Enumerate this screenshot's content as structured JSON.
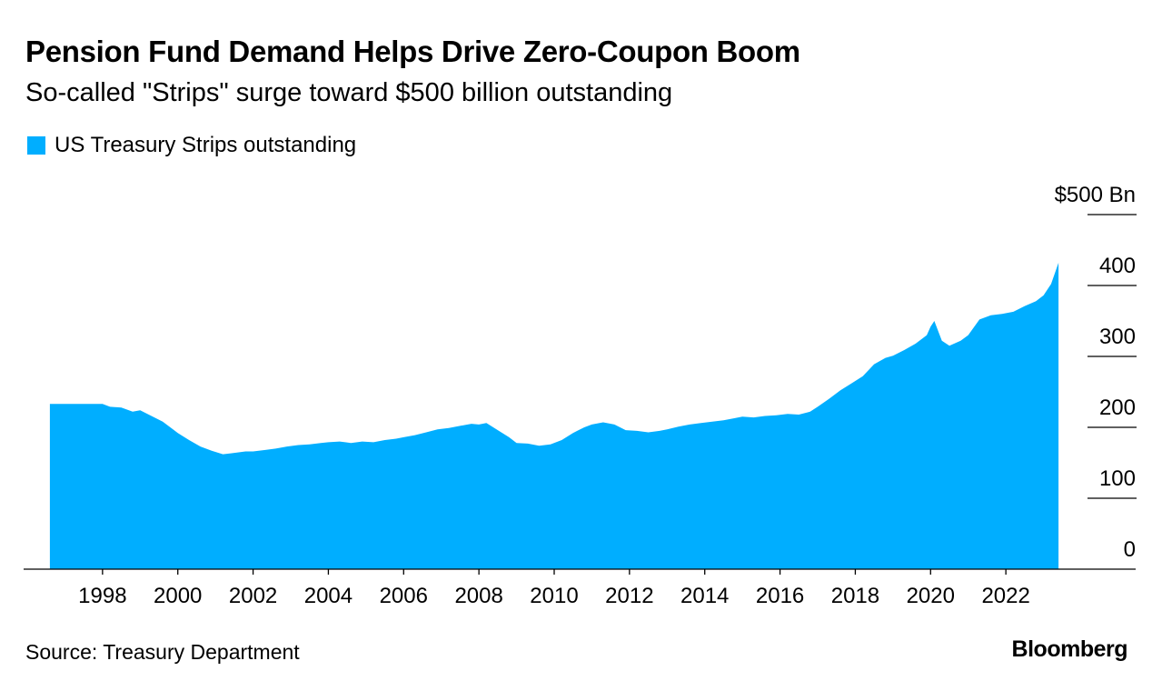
{
  "header": {
    "title": "Pension Fund Demand Helps Drive Zero-Coupon Boom",
    "subtitle": "So-called \"Strips\" surge toward $500 billion outstanding"
  },
  "legend": {
    "label": "US Treasury Strips outstanding",
    "color": "#00aeff"
  },
  "footer": {
    "source": "Source: Treasury Department",
    "brand": "Bloomberg"
  },
  "chart_data": {
    "type": "area",
    "title": "Pension Fund Demand Helps Drive Zero-Coupon Boom",
    "subtitle": "So-called \"Strips\" surge toward $500 billion outstanding",
    "xlabel": "",
    "ylabel": "",
    "ylim": [
      0,
      500
    ],
    "xlim": [
      1996.0,
      2024.0
    ],
    "y_ticks": [
      0,
      100,
      200,
      300,
      400,
      500
    ],
    "y_tick_labels": [
      "0",
      "100",
      "200",
      "300",
      "400",
      "$500 Bn"
    ],
    "x_ticks": [
      1998,
      2000,
      2002,
      2004,
      2006,
      2008,
      2010,
      2012,
      2014,
      2016,
      2018,
      2020,
      2022
    ],
    "x_tick_labels": [
      "1998",
      "2000",
      "2002",
      "2004",
      "2006",
      "2008",
      "2010",
      "2012",
      "2014",
      "2016",
      "2018",
      "2020",
      "2022"
    ],
    "y_axis_position": "right",
    "grid": false,
    "legend_position": "top-left",
    "series": [
      {
        "name": "US Treasury Strips outstanding",
        "color": "#00aeff",
        "x": [
          1996.6,
          1997.0,
          1997.5,
          1998.0,
          1998.2,
          1998.5,
          1998.8,
          1999.0,
          1999.3,
          1999.6,
          1999.9,
          2000.0,
          2000.3,
          2000.6,
          2000.9,
          2001.2,
          2001.5,
          2001.8,
          2002.0,
          2002.3,
          2002.6,
          2002.9,
          2003.2,
          2003.5,
          2003.8,
          2004.0,
          2004.3,
          2004.6,
          2004.9,
          2005.2,
          2005.5,
          2005.8,
          2006.0,
          2006.3,
          2006.6,
          2006.9,
          2007.2,
          2007.5,
          2007.8,
          2008.0,
          2008.2,
          2008.5,
          2008.8,
          2009.0,
          2009.3,
          2009.6,
          2009.9,
          2010.2,
          2010.5,
          2010.8,
          2011.0,
          2011.3,
          2011.6,
          2011.9,
          2012.2,
          2012.5,
          2012.8,
          2013.0,
          2013.3,
          2013.6,
          2013.9,
          2014.2,
          2014.5,
          2014.8,
          2015.0,
          2015.3,
          2015.6,
          2015.9,
          2016.2,
          2016.5,
          2016.8,
          2017.0,
          2017.3,
          2017.6,
          2017.9,
          2018.2,
          2018.5,
          2018.8,
          2019.0,
          2019.3,
          2019.6,
          2019.9,
          2020.0,
          2020.1,
          2020.3,
          2020.5,
          2020.8,
          2021.0,
          2021.3,
          2021.6,
          2021.9,
          2022.2,
          2022.5,
          2022.8,
          2023.0,
          2023.2,
          2023.4
        ],
        "y": [
          233,
          233,
          233,
          233,
          229,
          228,
          222,
          224,
          216,
          208,
          196,
          192,
          182,
          173,
          167,
          162,
          164,
          166,
          166,
          168,
          170,
          173,
          175,
          176,
          178,
          179,
          180,
          178,
          180,
          179,
          182,
          184,
          186,
          189,
          193,
          197,
          199,
          202,
          205,
          204,
          206,
          196,
          186,
          178,
          177,
          174,
          176,
          182,
          192,
          200,
          204,
          207,
          204,
          196,
          195,
          193,
          195,
          197,
          201,
          204,
          206,
          208,
          210,
          213,
          215,
          214,
          216,
          217,
          219,
          218,
          222,
          229,
          240,
          252,
          262,
          272,
          289,
          298,
          301,
          309,
          318,
          330,
          342,
          350,
          322,
          315,
          322,
          330,
          352,
          358,
          360,
          363,
          371,
          378,
          386,
          402,
          432
        ]
      }
    ]
  }
}
